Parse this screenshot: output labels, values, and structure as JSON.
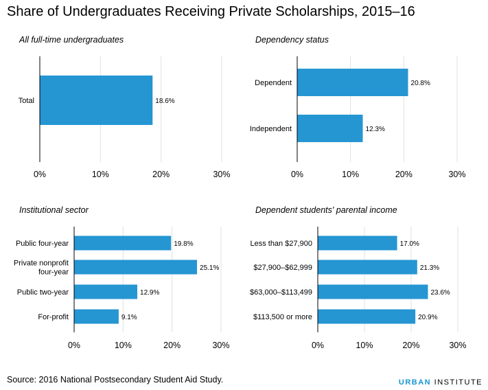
{
  "title": "Share of Undergraduates Receiving Private Scholarships, 2015–16",
  "source": "Source: 2016 National Postsecondary Student Aid Study.",
  "brand": {
    "part1": "URBAN",
    "part2": " INSTITUTE"
  },
  "colors": {
    "bar": "#2596d2",
    "grid": "#e0e0e0",
    "axis": "#000000",
    "brand_accent": "#1696d2"
  },
  "chart_data": [
    {
      "type": "bar",
      "orientation": "horizontal",
      "title": "All full-time undergraduates",
      "categories": [
        "Total"
      ],
      "values": [
        18.6
      ],
      "value_labels": [
        "18.6%"
      ],
      "xlim": [
        0,
        30
      ],
      "ticks": [
        0,
        10,
        20,
        30
      ],
      "tick_labels": [
        "0%",
        "10%",
        "20%",
        "30%"
      ],
      "grid": true
    },
    {
      "type": "bar",
      "orientation": "horizontal",
      "title": "Dependency status",
      "categories": [
        "Dependent",
        "Independent"
      ],
      "values": [
        20.8,
        12.3
      ],
      "value_labels": [
        "20.8%",
        "12.3%"
      ],
      "xlim": [
        0,
        30
      ],
      "ticks": [
        0,
        10,
        20,
        30
      ],
      "tick_labels": [
        "0%",
        "10%",
        "20%",
        "30%"
      ],
      "grid": true
    },
    {
      "type": "bar",
      "orientation": "horizontal",
      "title": "Institutional sector",
      "categories": [
        "Public four-year",
        "Private nonprofit four-year",
        "Public two-year",
        "For-profit"
      ],
      "category_lines": [
        [
          "Public four-year"
        ],
        [
          "Private nonprofit",
          "four-year"
        ],
        [
          "Public two-year"
        ],
        [
          "For-profit"
        ]
      ],
      "values": [
        19.8,
        25.1,
        12.9,
        9.1
      ],
      "value_labels": [
        "19.8%",
        "25.1%",
        "12.9%",
        "9.1%"
      ],
      "xlim": [
        0,
        30
      ],
      "ticks": [
        0,
        10,
        20,
        30
      ],
      "tick_labels": [
        "0%",
        "10%",
        "20%",
        "30%"
      ],
      "grid": true
    },
    {
      "type": "bar",
      "orientation": "horizontal",
      "title": "Dependent students' parental income",
      "categories": [
        "Less than $27,900",
        "$27,900–$62,999",
        "$63,000–$113,499",
        "$113,500 or more"
      ],
      "values": [
        17.0,
        21.3,
        23.6,
        20.9
      ],
      "value_labels": [
        "17.0%",
        "21.3%",
        "23.6%",
        "20.9%"
      ],
      "xlim": [
        0,
        30
      ],
      "ticks": [
        0,
        10,
        20,
        30
      ],
      "tick_labels": [
        "0%",
        "10%",
        "20%",
        "30%"
      ],
      "grid": true
    }
  ]
}
